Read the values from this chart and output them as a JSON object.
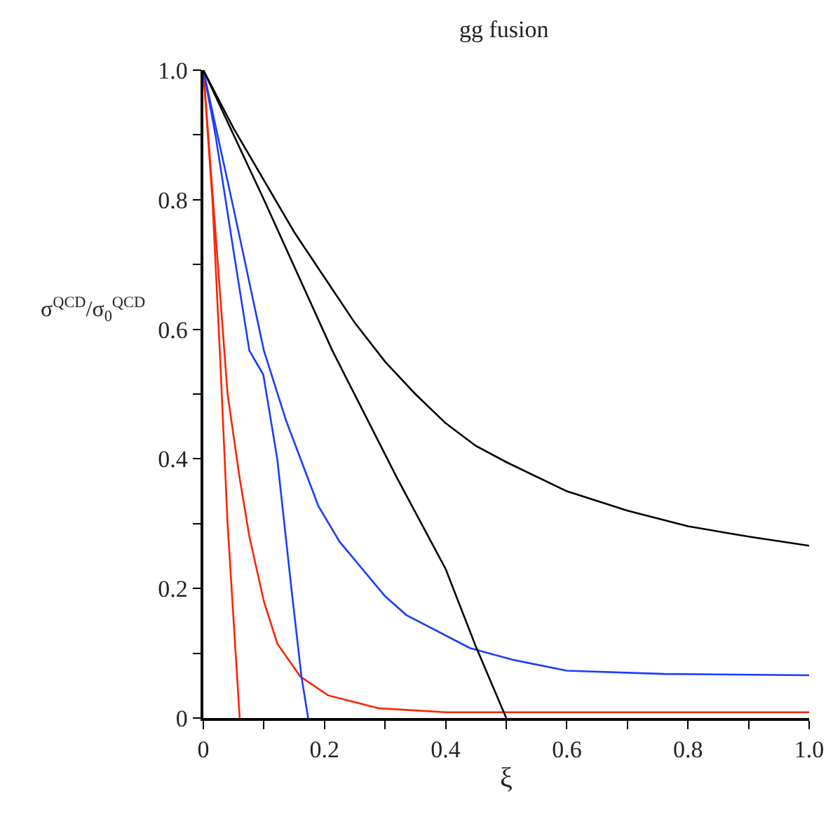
{
  "chart_data": {
    "type": "line",
    "title": "gg fusion",
    "xlabel": "ξ",
    "ylabel": "σ$^{QCD}$/σ$_{0}$$^{QCD}$",
    "xlim": [
      0,
      1
    ],
    "ylim": [
      0,
      1
    ],
    "xticks": [
      0,
      {
        "value": 0.1,
        "label": null
      },
      0.2,
      {
        "value": 0.3,
        "label": null
      },
      0.4,
      {
        "value": 0.5,
        "label": null
      },
      0.6,
      {
        "value": 0.7,
        "label": null
      },
      0.8,
      {
        "value": 0.9,
        "label": null
      },
      {
        "value": 1,
        "label": "1.0"
      }
    ],
    "yticks": [
      0,
      {
        "value": 0.1,
        "label": null
      },
      0.2,
      {
        "value": 0.3,
        "label": null
      },
      0.4,
      {
        "value": 0.5,
        "label": null
      },
      0.6,
      {
        "value": 0.7,
        "label": null
      },
      0.8,
      {
        "value": 0.9,
        "label": null
      },
      {
        "value": 1,
        "label": "1.0"
      }
    ],
    "marker": "none",
    "line_style": "solid",
    "series": [
      {
        "color": "#ff2200",
        "x": [
          0,
          0.015,
          0.028,
          0.04,
          0.05,
          0.06
        ],
        "values": [
          1,
          0.8,
          0.55,
          0.3,
          0.15,
          0
        ]
      },
      {
        "color": "#ff2200",
        "x": [
          0,
          0.02,
          0.04,
          0.06,
          0.076,
          0.1,
          0.122,
          0.16,
          0.206,
          0.29,
          0.4,
          1
        ],
        "values": [
          1,
          0.75,
          0.5,
          0.37,
          0.28,
          0.18,
          0.115,
          0.064,
          0.035,
          0.015,
          0.009,
          0.009
        ]
      },
      {
        "color": "#1a3cff",
        "x": [
          0,
          0.02,
          0.05,
          0.076,
          0.099,
          0.122,
          0.145,
          0.162,
          0.173
        ],
        "values": [
          1,
          0.9,
          0.72,
          0.567,
          0.53,
          0.4,
          0.203,
          0.064,
          0
        ]
      },
      {
        "color": "#1a3cff",
        "x": [
          0,
          0.05,
          0.1,
          0.137,
          0.19,
          0.225,
          0.3,
          0.335,
          0.44,
          0.51,
          0.6,
          0.76,
          1
        ],
        "values": [
          1,
          0.786,
          0.567,
          0.458,
          0.327,
          0.272,
          0.188,
          0.159,
          0.108,
          0.09,
          0.073,
          0.068,
          0.066
        ]
      },
      {
        "color": "#000000",
        "x": [
          0,
          0.1,
          0.213,
          0.32,
          0.4,
          0.45,
          0.5
        ],
        "values": [
          1,
          0.8,
          0.567,
          0.37,
          0.23,
          0.11,
          0
        ]
      },
      {
        "color": "#000000",
        "x": [
          0,
          0.05,
          0.1,
          0.15,
          0.2,
          0.25,
          0.3,
          0.35,
          0.4,
          0.45,
          0.5,
          0.6,
          0.7,
          0.8,
          0.9,
          1
        ],
        "values": [
          1,
          0.91,
          0.83,
          0.75,
          0.68,
          0.61,
          0.55,
          0.5,
          0.455,
          0.42,
          0.395,
          0.35,
          0.32,
          0.296,
          0.28,
          0.266
        ]
      }
    ]
  }
}
